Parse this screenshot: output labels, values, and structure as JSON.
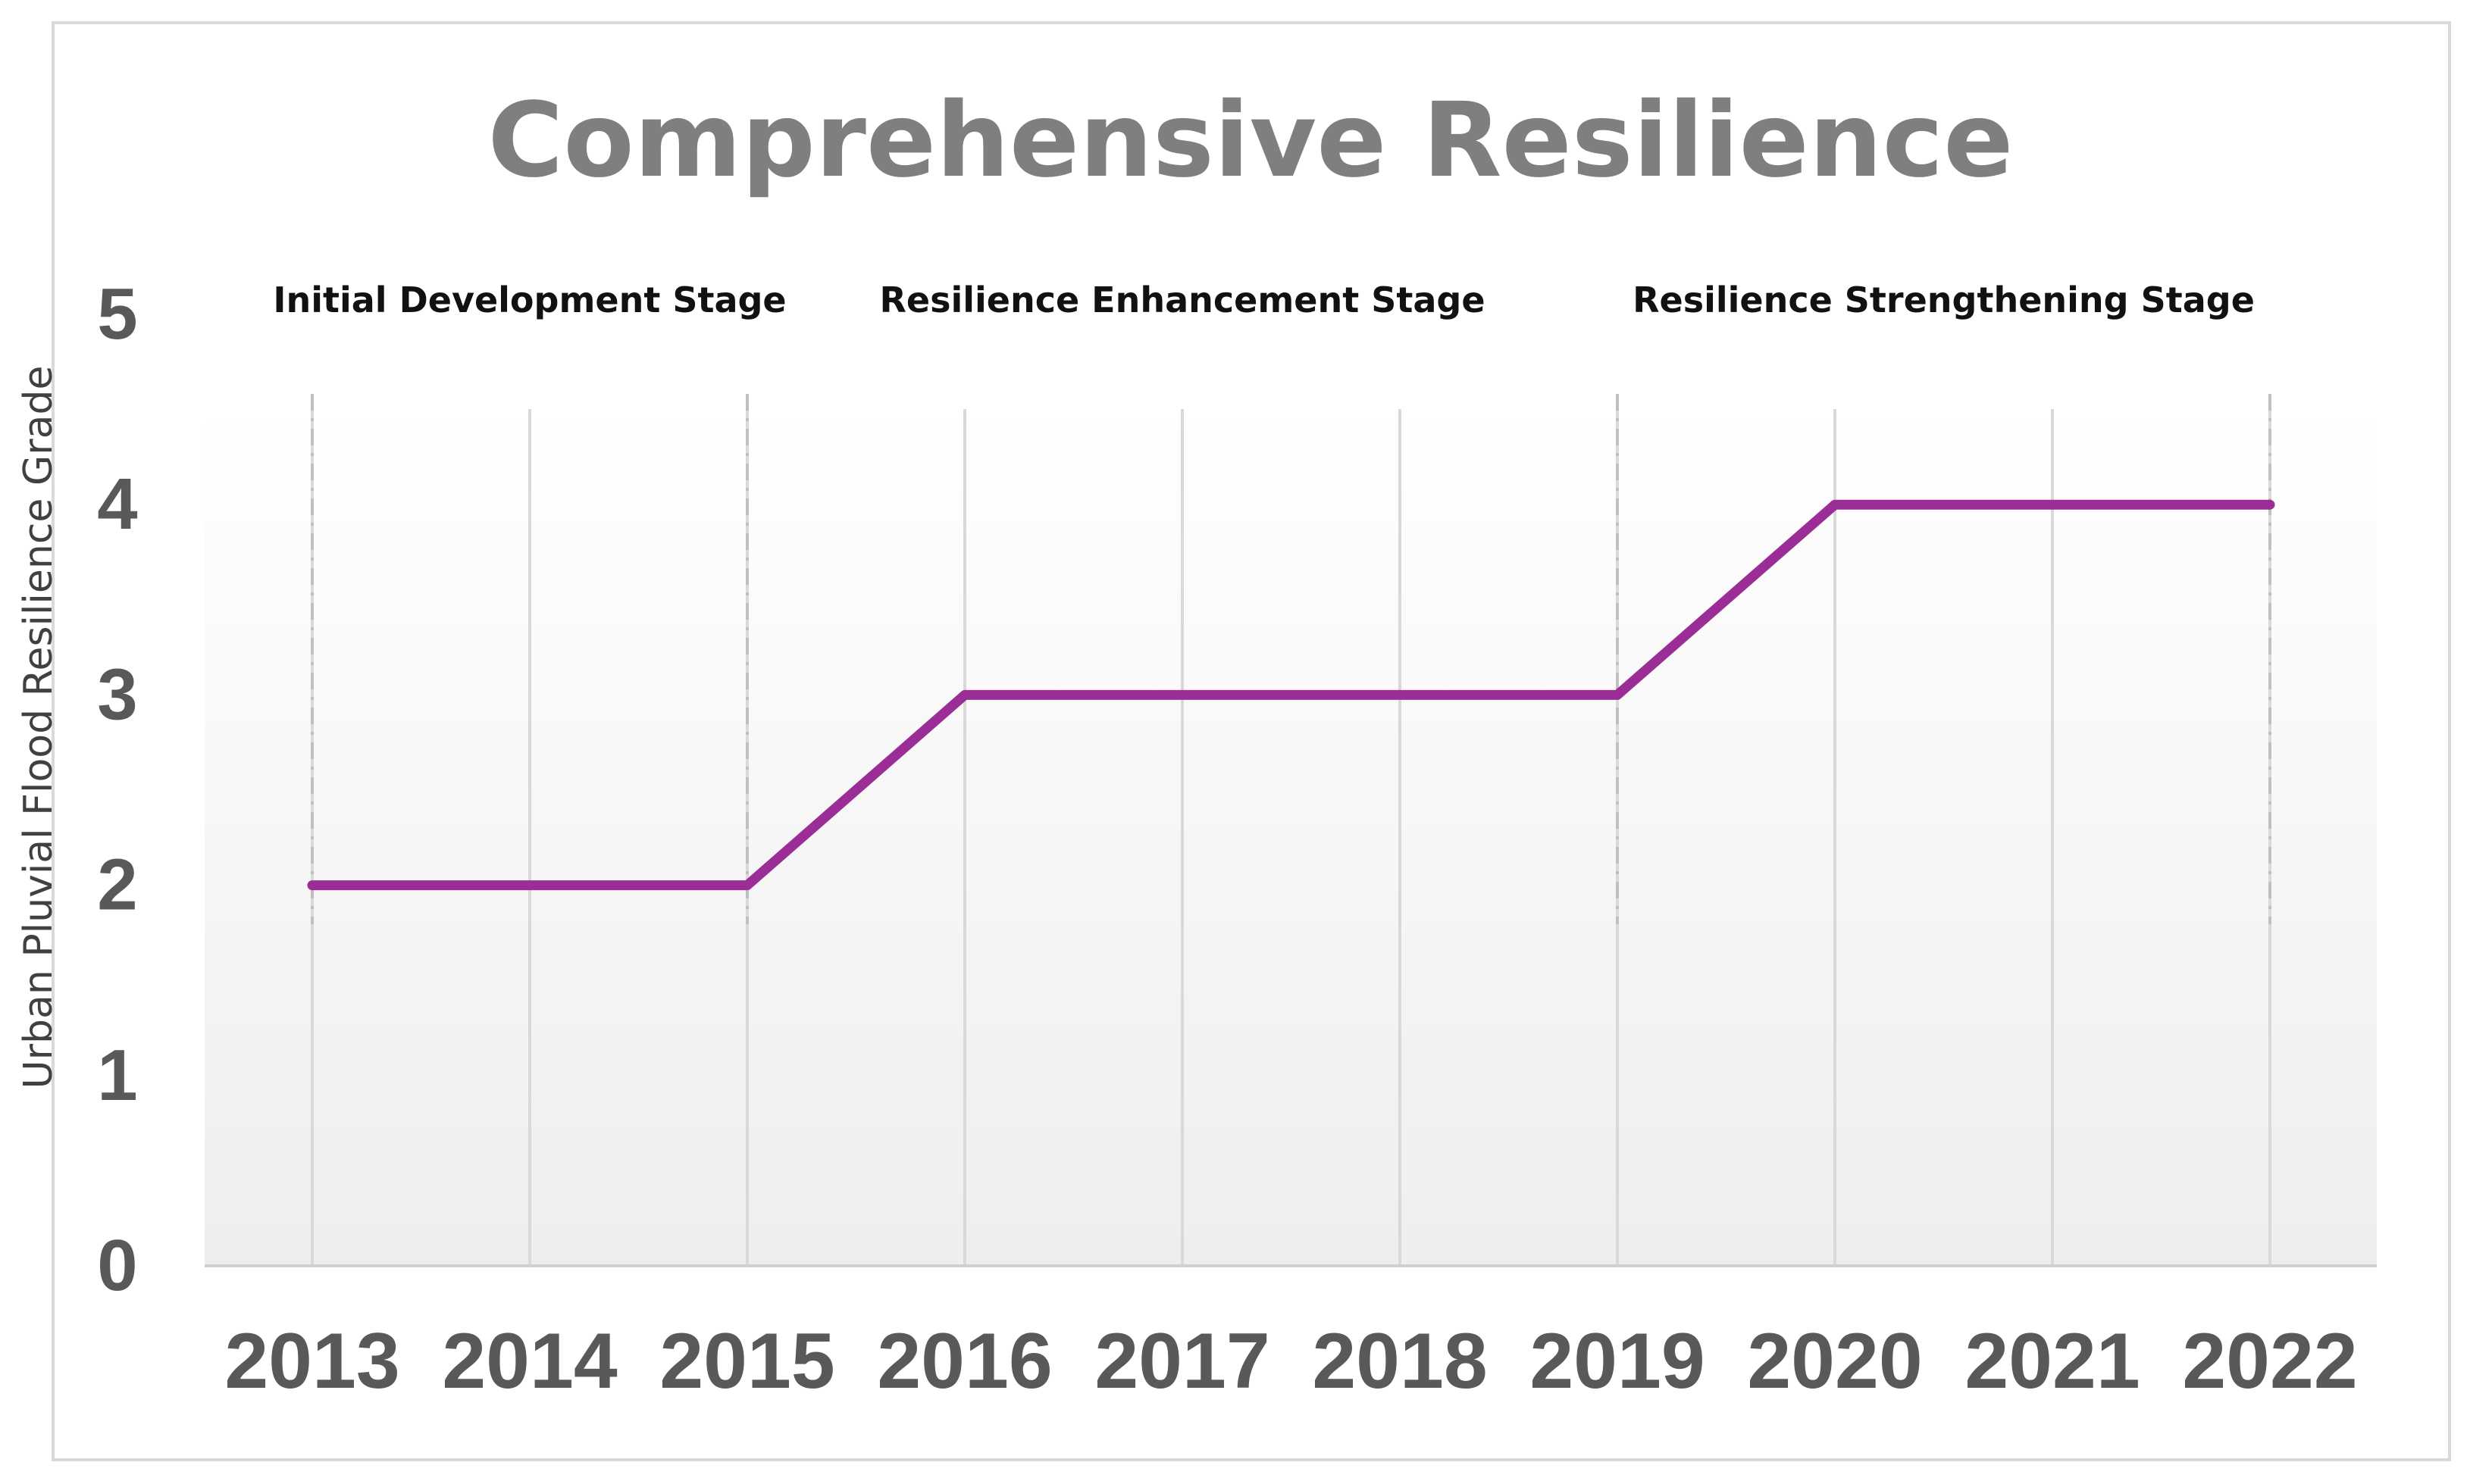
{
  "chart_data": {
    "type": "line",
    "title": "Comprehensive Resilience",
    "xlabel": "",
    "ylabel": "Urban Pluvial Flood Resilience Grade",
    "categories": [
      "2013",
      "2014",
      "2015",
      "2016",
      "2017",
      "2018",
      "2019",
      "2020",
      "2021",
      "2022"
    ],
    "series": [
      {
        "values": [
          2,
          2,
          2,
          3,
          3,
          3,
          3,
          4,
          4,
          4
        ],
        "color": "#9b2d96"
      }
    ],
    "ylim": [
      0,
      5
    ],
    "yticks": [
      "0",
      "1",
      "2",
      "3",
      "4",
      "5"
    ],
    "grid": "vertical",
    "stages": [
      {
        "label": "Initial Development Stage",
        "from": "2013",
        "to": "2015"
      },
      {
        "label": "Resilience Enhancement Stage",
        "from": "2015",
        "to": "2019"
      },
      {
        "label": "Resilience Strengthening Stage",
        "from": "2019",
        "to": "2022"
      }
    ],
    "colors": {
      "line": "#9b2d96",
      "title": "#7f7f7f",
      "ticks": "#595959",
      "grid": "#d9d9d9",
      "divider": "#c0c0c0"
    }
  }
}
